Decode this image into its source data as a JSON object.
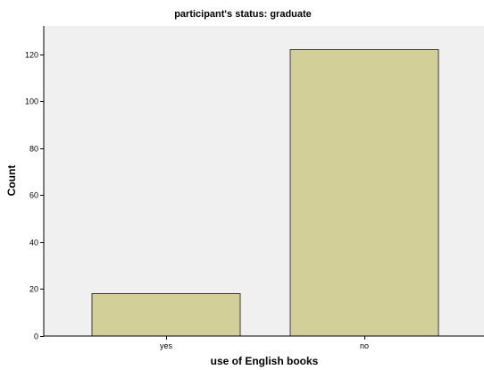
{
  "chart_data": {
    "type": "bar",
    "title": "participant's status: graduate",
    "xlabel": "use of English books",
    "ylabel": "Count",
    "categories": [
      "yes",
      "no"
    ],
    "values": [
      18,
      122
    ],
    "ylim": [
      0,
      132
    ],
    "yticks": [
      0,
      20,
      40,
      60,
      80,
      100,
      120
    ],
    "grid": false,
    "legend": "none",
    "bar_color": "#d3cf98",
    "bar_edge_color": "#3c3c3c",
    "plot_background": "#f0f0f0"
  }
}
